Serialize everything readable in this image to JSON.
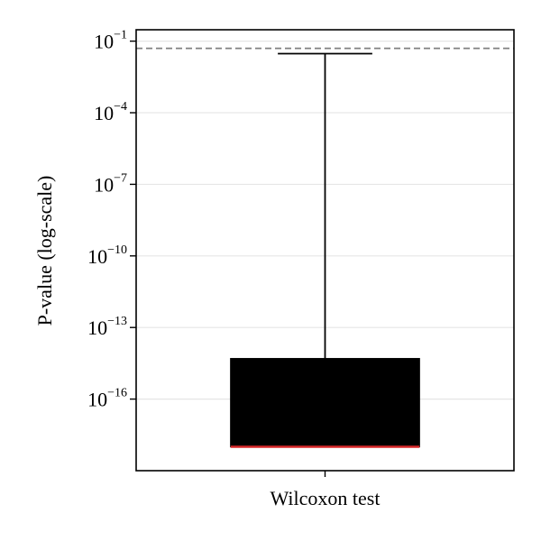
{
  "chart_data": {
    "type": "box",
    "categories": [
      "Wilcoxon test"
    ],
    "ylabel": "P-value (log-scale)",
    "xlabel": "",
    "yscale": "log",
    "ylim": [
      1e-19,
      0.3
    ],
    "grid": "y-major",
    "yticks": [
      {
        "value": 0.1,
        "base": "10",
        "exp": "−1"
      },
      {
        "value": 0.0001,
        "base": "10",
        "exp": "−4"
      },
      {
        "value": 1e-07,
        "base": "10",
        "exp": "−7"
      },
      {
        "value": 1e-10,
        "base": "10",
        "exp": "−10"
      },
      {
        "value": 1e-13,
        "base": "10",
        "exp": "−13"
      },
      {
        "value": 1e-16,
        "base": "10",
        "exp": "−16"
      }
    ],
    "reference_line": {
      "value": 0.05,
      "style": "dashed",
      "color": "#808080"
    },
    "boxes": [
      {
        "category": "Wilcoxon test",
        "whisker_low": 1e-18,
        "q1": 1e-18,
        "median": 1e-18,
        "q3": 5e-15,
        "whisker_high": 0.03
      }
    ],
    "colors": {
      "box": "#000000",
      "median": "#d62728",
      "whisker": "#000000",
      "grid": "#e6e6e6"
    }
  }
}
